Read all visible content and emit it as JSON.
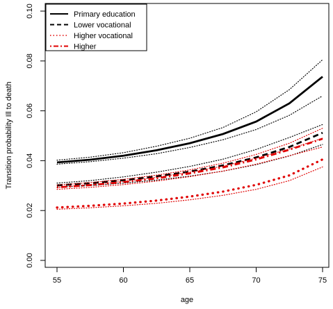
{
  "chart_data": {
    "type": "line",
    "title": "",
    "xlabel": "age",
    "ylabel": "Transition probability Ill to death",
    "xlim": [
      55,
      75
    ],
    "ylim": [
      0,
      0.1
    ],
    "xticks": [
      55,
      60,
      65,
      70,
      75
    ],
    "yticks": [
      0.0,
      0.02,
      0.04,
      0.06,
      0.08,
      0.1
    ],
    "ytick_labels": [
      "0.00",
      "0.02",
      "0.04",
      "0.06",
      "0.08",
      "0.10"
    ],
    "grid": false,
    "legend_position": "top-left",
    "x": [
      55,
      57.5,
      60,
      62.5,
      65,
      67.5,
      70,
      72.5,
      75
    ],
    "series": [
      {
        "name": "Primary education",
        "color": "#000000",
        "style": "solid",
        "values": [
          0.0393,
          0.0404,
          0.042,
          0.0442,
          0.047,
          0.0507,
          0.0557,
          0.063,
          0.0737
        ],
        "lower": [
          0.0386,
          0.0396,
          0.041,
          0.0428,
          0.0453,
          0.0484,
          0.0525,
          0.0582,
          0.066
        ],
        "upper": [
          0.0402,
          0.0414,
          0.0432,
          0.0458,
          0.049,
          0.0533,
          0.0596,
          0.0685,
          0.0805
        ]
      },
      {
        "name": "Lower vocational",
        "color": "#000000",
        "style": "dashed",
        "values": [
          0.0301,
          0.031,
          0.0322,
          0.0337,
          0.0356,
          0.0381,
          0.0413,
          0.0455,
          0.0512
        ],
        "lower": [
          0.0293,
          0.03,
          0.031,
          0.0322,
          0.0338,
          0.0358,
          0.0384,
          0.0419,
          0.0465
        ],
        "upper": [
          0.031,
          0.032,
          0.0335,
          0.0354,
          0.0377,
          0.0406,
          0.0445,
          0.0493,
          0.0545
        ]
      },
      {
        "name": "Higher vocational",
        "color": "#e00000",
        "style": "dotted",
        "values": [
          0.0212,
          0.0219,
          0.0228,
          0.024,
          0.0256,
          0.0276,
          0.0303,
          0.0341,
          0.0405
        ],
        "lower": [
          0.0205,
          0.0211,
          0.0219,
          0.0229,
          0.0243,
          0.0261,
          0.0285,
          0.032,
          0.0375
        ],
        "upper": [
          0.0293,
          0.0304,
          0.0317,
          0.0333,
          0.0354,
          0.0378,
          0.041,
          0.0447,
          0.049
        ]
      },
      {
        "name": "Higher",
        "color": "#e00000",
        "style": "dotdash",
        "values": [
          0.0293,
          0.0302,
          0.0314,
          0.0329,
          0.0349,
          0.0373,
          0.0405,
          0.0444,
          0.0488
        ],
        "lower": [
          0.0285,
          0.0293,
          0.0304,
          0.0318,
          0.0336,
          0.0358,
          0.0386,
          0.042,
          0.0455
        ],
        "upper": [
          0.0302,
          0.0312,
          0.0325,
          0.0342,
          0.0363,
          0.039,
          0.0425,
          0.047,
          0.053
        ]
      }
    ]
  }
}
